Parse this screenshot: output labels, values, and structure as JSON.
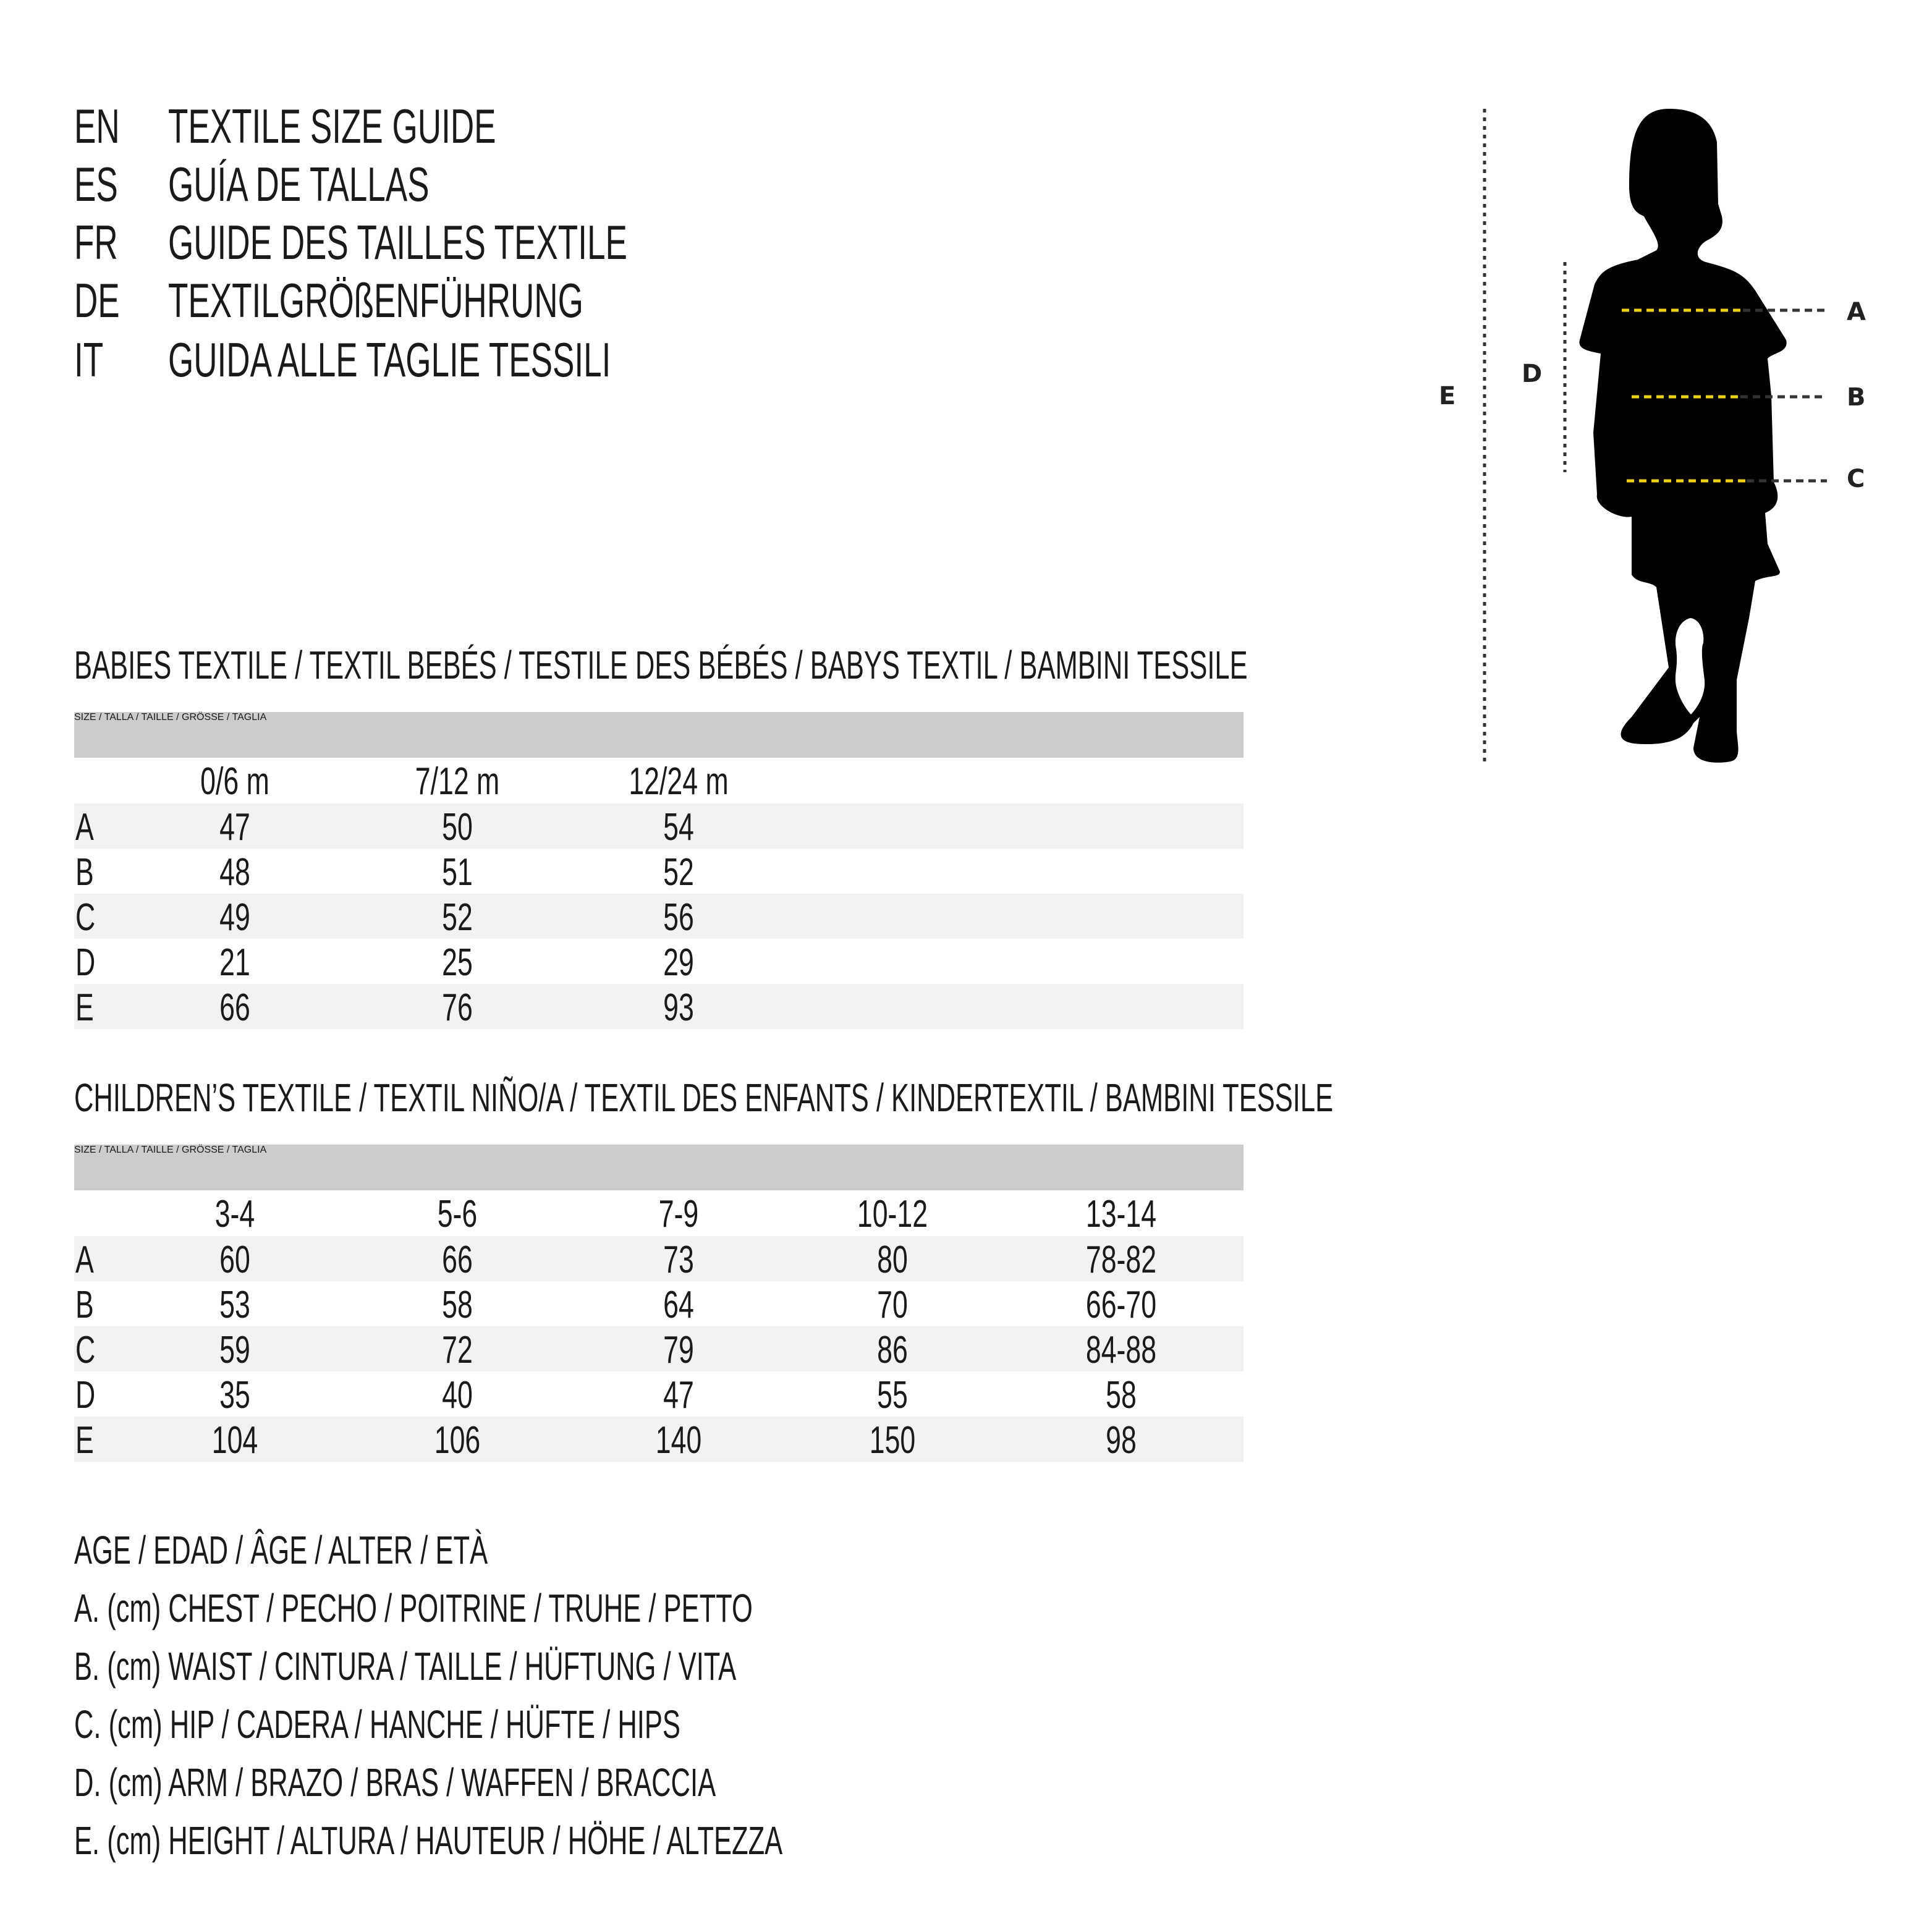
{
  "header": {
    "lines": [
      {
        "code": "EN",
        "title": "TEXTILE SIZE GUIDE"
      },
      {
        "code": "ES",
        "title": "GUÍA DE TALLAS"
      },
      {
        "code": "FR",
        "title": "GUIDE DES TAILLES TEXTILE"
      },
      {
        "code": "DE",
        "title": "TEXTILGRÖßENFÜHRUNG"
      },
      {
        "code": "IT",
        "title": "GUIDA ALLE TAGLIE TESSILI"
      }
    ]
  },
  "babies": {
    "heading": "BABIES TEXTILE / TEXTIL BEBÉS / TESTILE DES BÉBÉS / BABYS TEXTIL / BAMBINI TESSILE",
    "size_label": "SIZE / TALLA / TAILLE / GRÖSSE / TAGLIA",
    "columns": [
      "0/6 m",
      "7/12 m",
      "12/24 m"
    ],
    "rows": [
      {
        "label": "A",
        "values": [
          "47",
          "50",
          "54"
        ]
      },
      {
        "label": "B",
        "values": [
          "48",
          "51",
          "52"
        ]
      },
      {
        "label": "C",
        "values": [
          "49",
          "52",
          "56"
        ]
      },
      {
        "label": "D",
        "values": [
          "21",
          "25",
          "29"
        ]
      },
      {
        "label": "E",
        "values": [
          "66",
          "76",
          "93"
        ]
      }
    ]
  },
  "children": {
    "heading": "CHILDREN’S TEXTILE / TEXTIL NIÑO/A / TEXTIL DES ENFANTS / KINDERTEXTIL / BAMBINI TESSILE",
    "size_label": "SIZE / TALLA / TAILLE / GRÖSSE / TAGLIA",
    "columns": [
      "3-4",
      "5-6",
      "7-9",
      "10-12",
      "13-14"
    ],
    "rows": [
      {
        "label": "A",
        "values": [
          "60",
          "66",
          "73",
          "80",
          "78-82"
        ]
      },
      {
        "label": "B",
        "values": [
          "53",
          "58",
          "64",
          "70",
          "66-70"
        ]
      },
      {
        "label": "C",
        "values": [
          "59",
          "72",
          "79",
          "86",
          "84-88"
        ]
      },
      {
        "label": "D",
        "values": [
          "35",
          "40",
          "47",
          "55",
          "58"
        ]
      },
      {
        "label": "E",
        "values": [
          "104",
          "106",
          "140",
          "150",
          "98"
        ]
      }
    ]
  },
  "legend": [
    "AGE / EDAD / ÂGE / ALTER / ETÀ",
    "A. (cm) CHEST / PECHO / POITRINE / TRUHE / PETTO",
    "B. (cm) WAIST / CINTURA / TAILLE / HÜFTUNG / VITA",
    "C. (cm) HIP / CADERA / HANCHE / HÜFTE / HIPS",
    "D. (cm) ARM / BRAZO / BRAS / WAFFEN / BRACCIA",
    "E. (cm) HEIGHT / ALTURA / HAUTEUR / HÖHE / ALTEZZA"
  ],
  "figure": {
    "labels": {
      "a": "A",
      "b": "B",
      "c": "C",
      "d": "D",
      "e": "E"
    },
    "colors": {
      "measure_line": "#f2d200",
      "guide_line": "#333333",
      "silhouette": "#000000"
    }
  }
}
